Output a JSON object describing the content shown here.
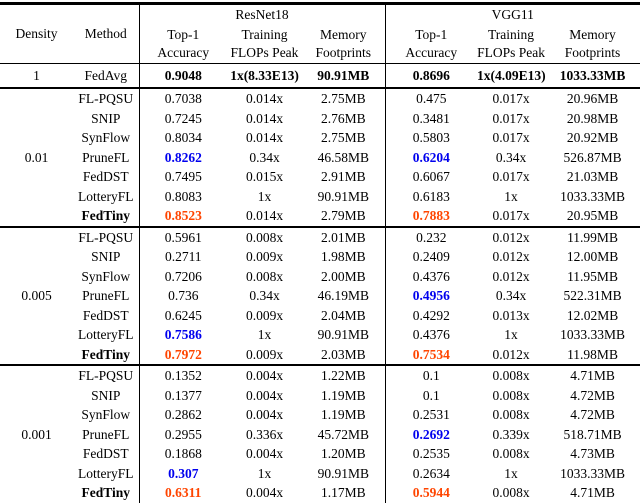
{
  "colors": {
    "best": "#ff4500",
    "second_best": "#0000ee"
  },
  "table": {
    "headers": {
      "density": "Density",
      "method": "Method",
      "group1": "ResNet18",
      "group2": "VGG11",
      "sub": [
        "Top-1\nAccuracy",
        "Training\nFLOPs Peak",
        "Memory\nFootprints"
      ]
    },
    "sections": [
      {
        "density": "1",
        "rows": [
          {
            "method": "FedAvg",
            "cells": [
              {
                "t": "0.9048",
                "b": true
              },
              {
                "t": "1x(8.33E13)",
                "b": true
              },
              {
                "t": "90.91MB",
                "b": true
              },
              {
                "t": "0.8696",
                "b": true
              },
              {
                "t": "1x(4.09E13)",
                "b": true
              },
              {
                "t": "1033.33MB",
                "b": true
              }
            ]
          }
        ]
      },
      {
        "density": "0.01",
        "rows": [
          {
            "method": "FL-PQSU",
            "cells": [
              "0.7038",
              "0.014x",
              "2.75MB",
              "0.475",
              "0.017x",
              "20.96MB"
            ]
          },
          {
            "method": "SNIP",
            "cells": [
              "0.7245",
              "0.014x",
              "2.76MB",
              "0.3481",
              "0.017x",
              "20.98MB"
            ]
          },
          {
            "method": "SynFlow",
            "cells": [
              "0.8034",
              "0.014x",
              "2.75MB",
              "0.5803",
              "0.017x",
              "20.92MB"
            ]
          },
          {
            "method": "PruneFL",
            "cells": [
              {
                "t": "0.8262",
                "b": true,
                "c": "second_best"
              },
              "0.34x",
              "46.58MB",
              {
                "t": "0.6204",
                "b": true,
                "c": "second_best"
              },
              "0.34x",
              "526.87MB"
            ]
          },
          {
            "method": "FedDST",
            "cells": [
              "0.7495",
              "0.015x",
              "2.91MB",
              "0.6067",
              "0.017x",
              "21.03MB"
            ]
          },
          {
            "method": "LotteryFL",
            "cells": [
              "0.8083",
              "1x",
              "90.91MB",
              "0.6183",
              "1x",
              "1033.33MB"
            ]
          },
          {
            "method": "FedTiny",
            "method_bold": true,
            "cells": [
              {
                "t": "0.8523",
                "b": true,
                "c": "best"
              },
              "0.014x",
              "2.79MB",
              {
                "t": "0.7883",
                "b": true,
                "c": "best"
              },
              "0.017x",
              "20.95MB"
            ]
          }
        ]
      },
      {
        "density": "0.005",
        "rows": [
          {
            "method": "FL-PQSU",
            "cells": [
              "0.5961",
              "0.008x",
              "2.01MB",
              "0.232",
              "0.012x",
              "11.99MB"
            ]
          },
          {
            "method": "SNIP",
            "cells": [
              "0.2711",
              "0.009x",
              "1.98MB",
              "0.2409",
              "0.012x",
              "12.00MB"
            ]
          },
          {
            "method": "SynFlow",
            "cells": [
              "0.7206",
              "0.008x",
              "2.00MB",
              "0.4376",
              "0.012x",
              "11.95MB"
            ]
          },
          {
            "method": "PruneFL",
            "cells": [
              "0.736",
              "0.34x",
              "46.19MB",
              {
                "t": "0.4956",
                "b": true,
                "c": "second_best"
              },
              "0.34x",
              "522.31MB"
            ]
          },
          {
            "method": "FedDST",
            "cells": [
              "0.6245",
              "0.009x",
              "2.04MB",
              "0.4292",
              "0.013x",
              "12.02MB"
            ]
          },
          {
            "method": "LotteryFL",
            "cells": [
              {
                "t": "0.7586",
                "b": true,
                "c": "second_best"
              },
              "1x",
              "90.91MB",
              "0.4376",
              "1x",
              "1033.33MB"
            ]
          },
          {
            "method": "FedTiny",
            "method_bold": true,
            "cells": [
              {
                "t": "0.7972",
                "b": true,
                "c": "best"
              },
              "0.009x",
              "2.03MB",
              {
                "t": "0.7534",
                "b": true,
                "c": "best"
              },
              "0.012x",
              "11.98MB"
            ]
          }
        ]
      },
      {
        "density": "0.001",
        "rows": [
          {
            "method": "FL-PQSU",
            "cells": [
              "0.1352",
              "0.004x",
              "1.22MB",
              "0.1",
              "0.008x",
              "4.71MB"
            ]
          },
          {
            "method": "SNIP",
            "cells": [
              "0.1377",
              "0.004x",
              "1.19MB",
              "0.1",
              "0.008x",
              "4.72MB"
            ]
          },
          {
            "method": "SynFlow",
            "cells": [
              "0.2862",
              "0.004x",
              "1.19MB",
              "0.2531",
              "0.008x",
              "4.72MB"
            ]
          },
          {
            "method": "PruneFL",
            "cells": [
              "0.2955",
              "0.336x",
              "45.72MB",
              {
                "t": "0.2692",
                "b": true,
                "c": "second_best"
              },
              "0.339x",
              "518.71MB"
            ]
          },
          {
            "method": "FedDST",
            "cells": [
              "0.1868",
              "0.004x",
              "1.20MB",
              "0.2535",
              "0.008x",
              "4.73MB"
            ]
          },
          {
            "method": "LotteryFL",
            "cells": [
              {
                "t": "0.307",
                "b": true,
                "c": "second_best"
              },
              "1x",
              "90.91MB",
              "0.2634",
              "1x",
              "1033.33MB"
            ]
          },
          {
            "method": "FedTiny",
            "method_bold": true,
            "cells": [
              {
                "t": "0.6311",
                "b": true,
                "c": "best"
              },
              "0.004x",
              "1.17MB",
              {
                "t": "0.5944",
                "b": true,
                "c": "best"
              },
              "0.008x",
              "4.71MB"
            ]
          }
        ]
      }
    ]
  }
}
